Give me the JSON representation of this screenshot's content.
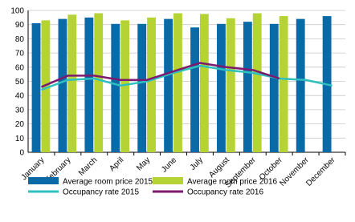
{
  "chart_data": {
    "type": "bar",
    "categories": [
      "January",
      "February",
      "March",
      "April",
      "May",
      "June",
      "July",
      "August",
      "September",
      "October",
      "November",
      "December"
    ],
    "series": [
      {
        "name": "Average room price 2015",
        "type": "bar",
        "color": "#0a6aa8",
        "values": [
          91,
          94,
          95,
          90.5,
          90.5,
          94,
          88,
          90.5,
          92,
          90.5,
          94,
          96
        ]
      },
      {
        "name": "Average room price 2016",
        "type": "bar",
        "color": "#b5d334",
        "values": [
          93,
          97,
          98,
          93,
          95,
          98,
          97.5,
          94.5,
          98,
          96,
          null,
          null
        ]
      },
      {
        "name": "Occupancy rate 2015",
        "type": "line",
        "color": "#2fbfbf",
        "values": [
          44,
          51,
          52,
          47,
          50,
          56,
          61,
          58,
          56,
          52,
          51,
          47
        ]
      },
      {
        "name": "Occupancy rate 2016",
        "type": "line",
        "color": "#7b1a6e",
        "values": [
          46,
          54,
          54,
          51,
          51,
          57,
          63,
          60,
          58,
          52,
          null,
          null
        ]
      }
    ],
    "ylim": [
      0,
      100
    ],
    "yticks": [
      0,
      10,
      20,
      30,
      40,
      50,
      60,
      70,
      80,
      90,
      100
    ],
    "grid": true
  }
}
